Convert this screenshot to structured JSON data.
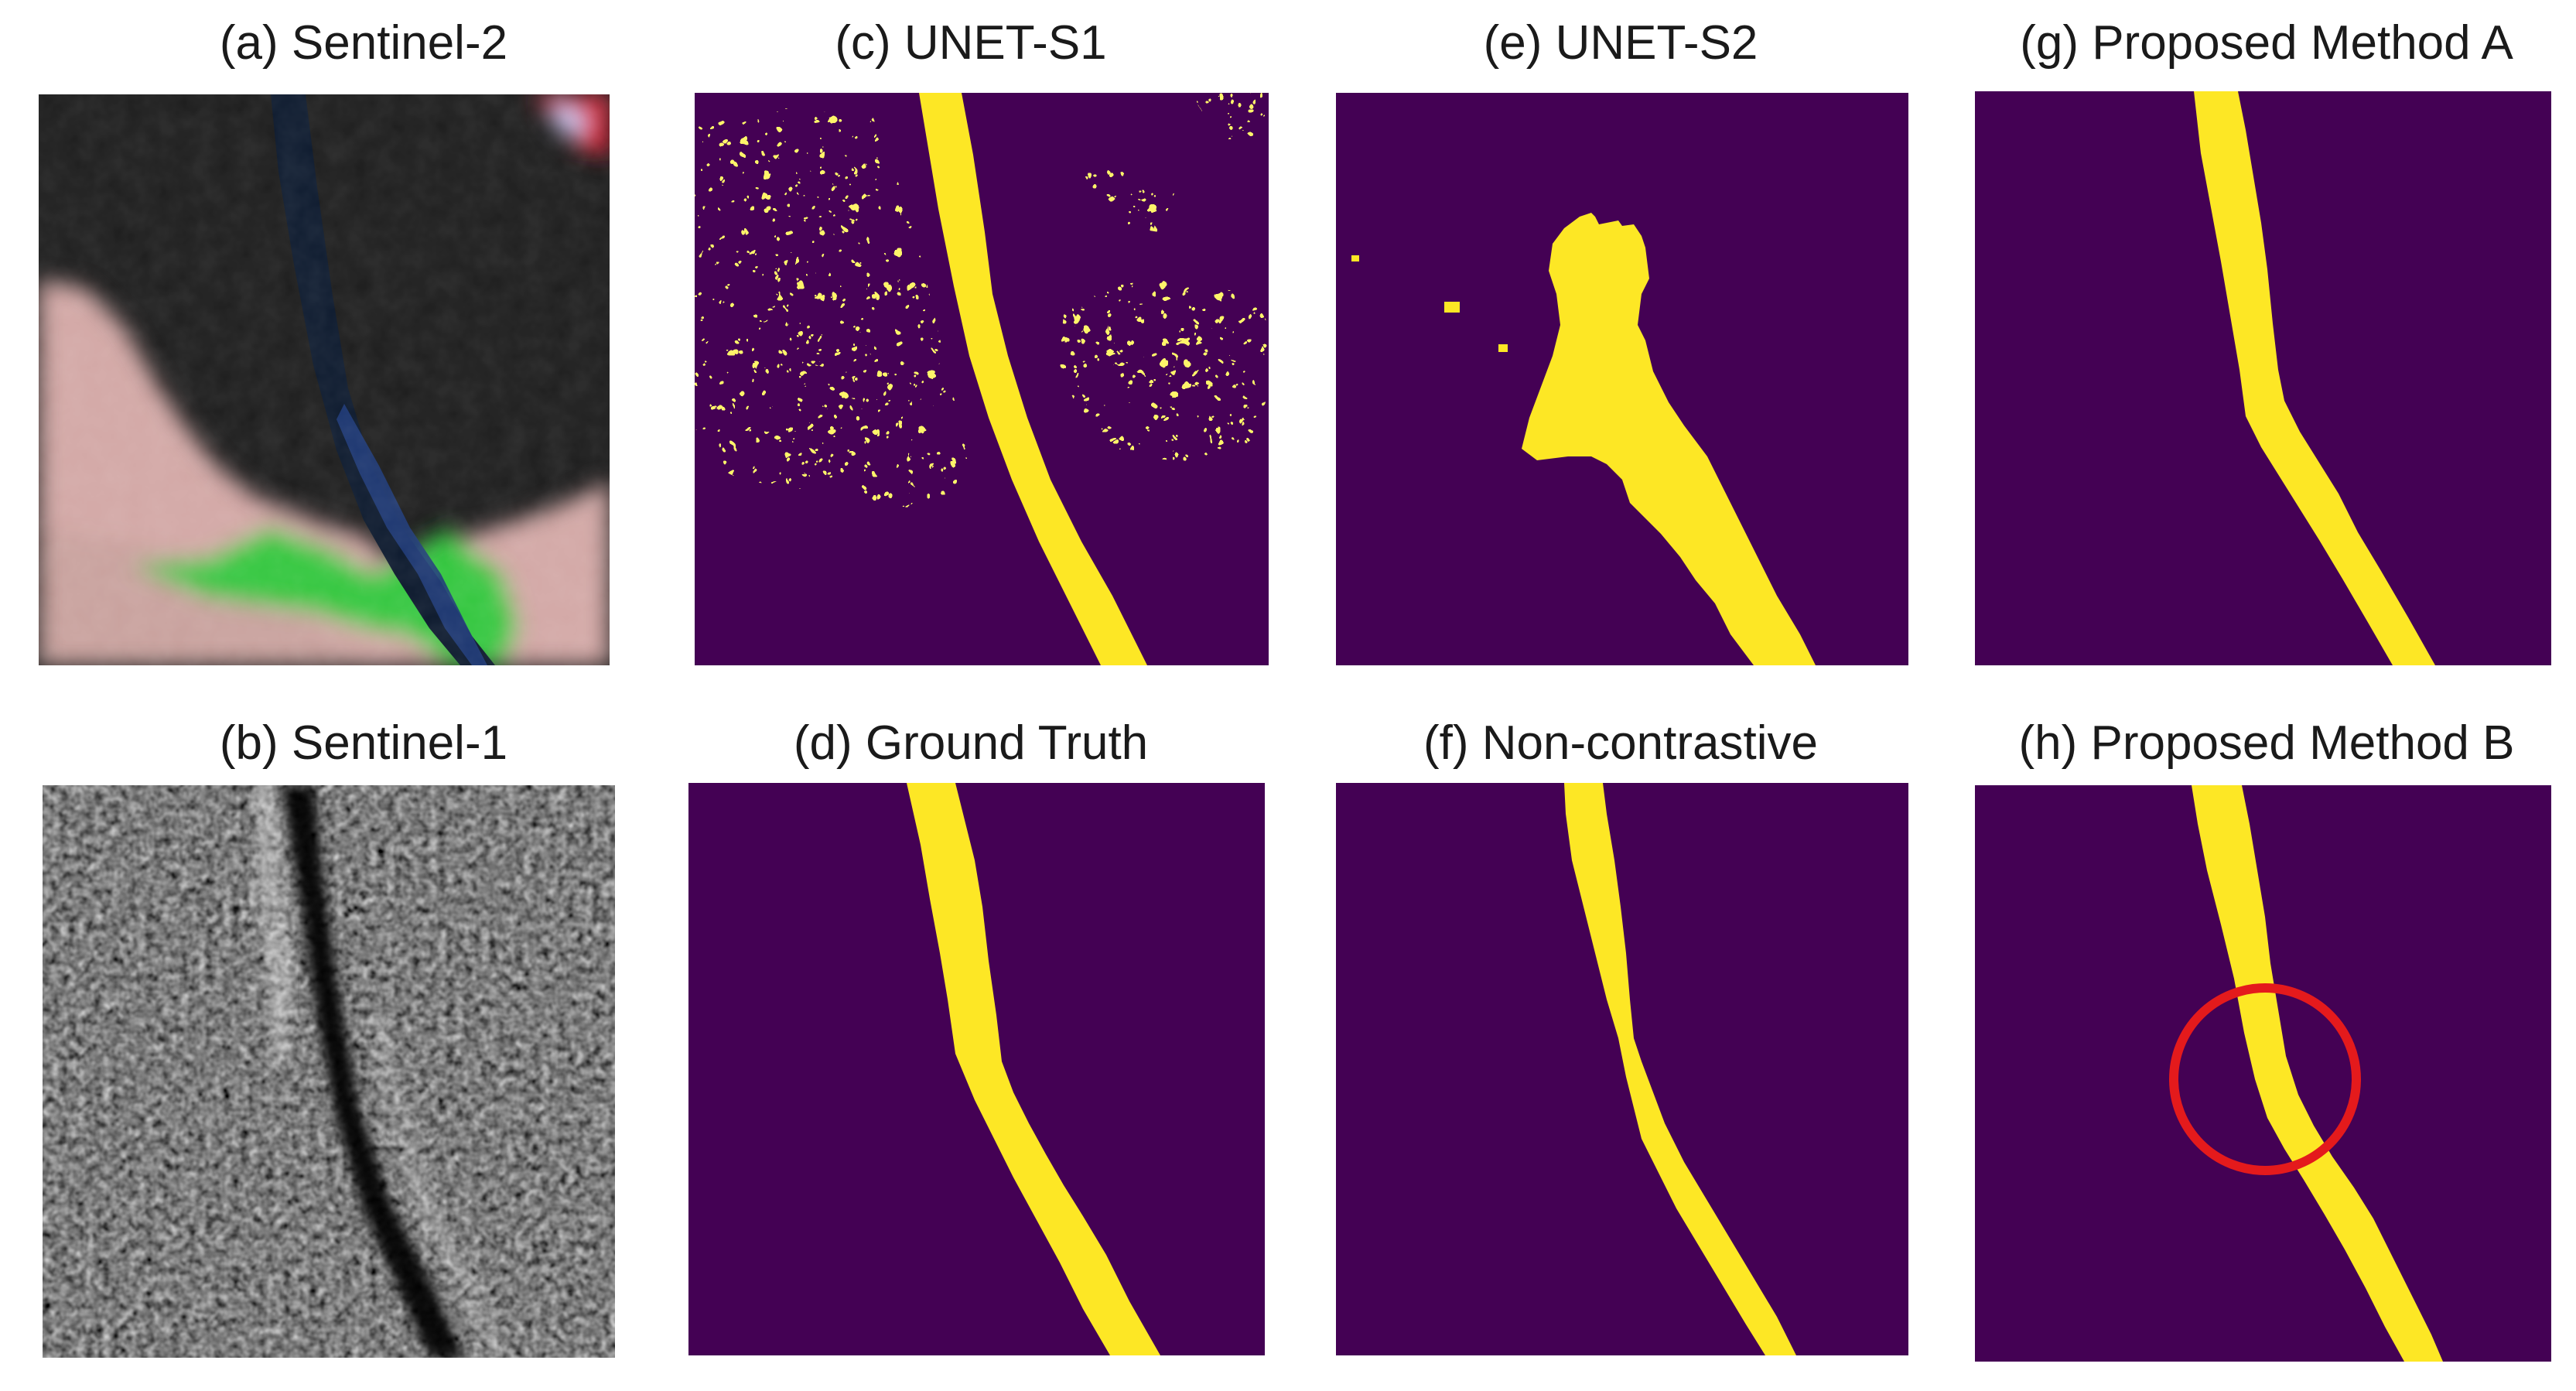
{
  "figure": {
    "colors": {
      "background_class": "#440154",
      "water_class": "#fde725",
      "highlight_circle": "#e41a1c"
    },
    "panels": [
      {
        "id": "a",
        "title": "(a) Sentinel-2",
        "kind": "optical-rgb"
      },
      {
        "id": "b",
        "title": "(b) Sentinel-1",
        "kind": "sar-grayscale"
      },
      {
        "id": "c",
        "title": "(c) UNET-S1",
        "kind": "segmentation-mask"
      },
      {
        "id": "d",
        "title": "(d) Ground Truth",
        "kind": "segmentation-mask"
      },
      {
        "id": "e",
        "title": "(e) UNET-S2",
        "kind": "segmentation-mask"
      },
      {
        "id": "f",
        "title": "(f) Non-contrastive",
        "kind": "segmentation-mask"
      },
      {
        "id": "g",
        "title": "(g) Proposed Method A",
        "kind": "segmentation-mask"
      },
      {
        "id": "h",
        "title": "(h) Proposed Method B",
        "kind": "segmentation-mask",
        "annotation": "red-circle-highlight"
      }
    ]
  }
}
